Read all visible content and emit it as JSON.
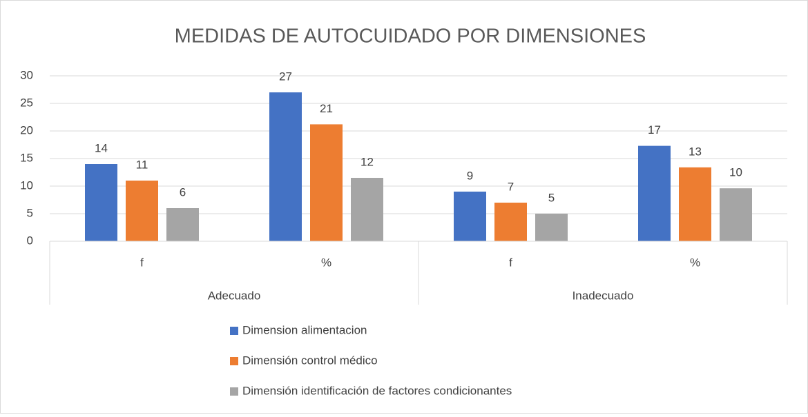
{
  "chart_data": {
    "type": "bar",
    "title": "MEDIDAS DE AUTOCUIDADO POR DIMENSIONES",
    "groups": [
      "Adecuado",
      "Inadecuado"
    ],
    "categories": [
      "f",
      "%",
      "f",
      "%"
    ],
    "series": [
      {
        "name": "Dimension alimentacion",
        "color": "#4472c4",
        "values": [
          14,
          27,
          9,
          17.3
        ],
        "value_labels": [
          "14",
          "27",
          "9",
          "17"
        ]
      },
      {
        "name": "Dimensión control médico",
        "color": "#ed7d31",
        "values": [
          11,
          21.2,
          7,
          13.4
        ],
        "value_labels": [
          "11",
          "21",
          "7",
          "13"
        ]
      },
      {
        "name": "Dimensión identificación de factores condicionantes",
        "color": "#a5a5a5",
        "values": [
          6,
          11.5,
          5,
          9.6
        ],
        "value_labels": [
          "6",
          "12",
          "5",
          "10"
        ]
      }
    ],
    "ylim": [
      0,
      30
    ],
    "yticks": [
      0,
      5,
      10,
      15,
      20,
      25,
      30
    ],
    "grid": true,
    "legend": "bottom"
  }
}
